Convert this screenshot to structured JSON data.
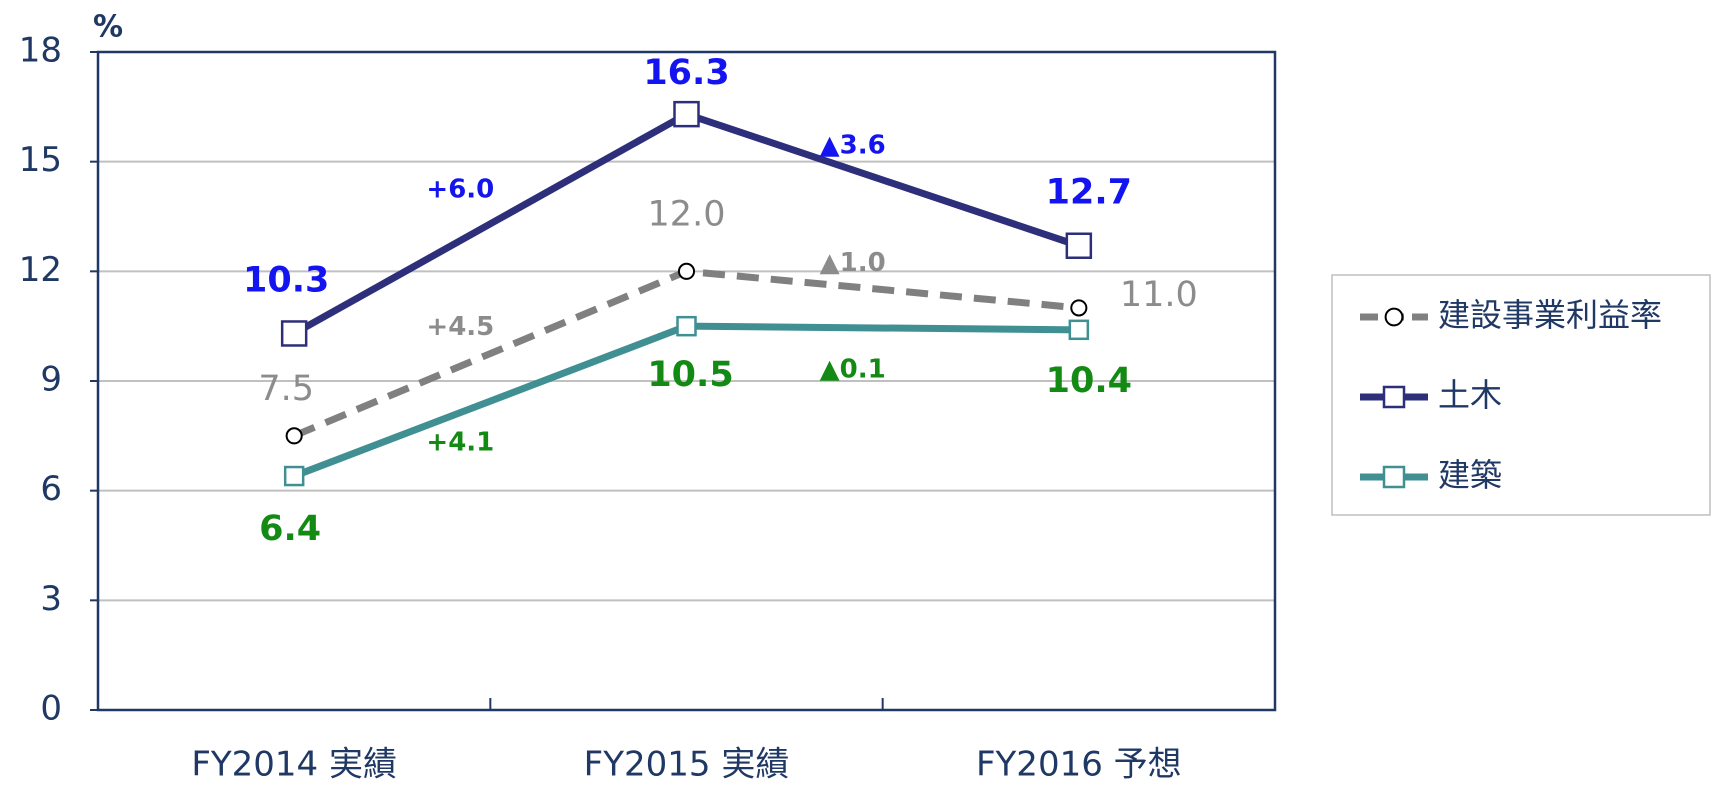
{
  "chart_data": {
    "type": "line",
    "y_unit_label": "%",
    "categories": [
      "FY2014 実績",
      "FY2015 実績",
      "FY2016 予想"
    ],
    "ylim": [
      0,
      18
    ],
    "yticks": [
      0,
      3,
      6,
      9,
      12,
      15,
      18
    ],
    "grid": true,
    "legend": "right",
    "series": [
      {
        "name": "建設事業利益率",
        "color": "#808080",
        "label_color": "#8c8c8c",
        "dash": true,
        "marker": "circle",
        "values": [
          7.5,
          12.0,
          11.0
        ],
        "value_labels": [
          "7.5",
          "12.0",
          "11.0"
        ],
        "changes": [
          "+4.5",
          "▲1.0"
        ]
      },
      {
        "name": "土木",
        "color": "#2e2f7a",
        "label_color": "#1414f0",
        "dash": false,
        "marker": "square",
        "values": [
          10.3,
          16.3,
          12.7
        ],
        "value_labels": [
          "10.3",
          "16.3",
          "12.7"
        ],
        "changes": [
          "+6.0",
          "▲3.6"
        ]
      },
      {
        "name": "建築",
        "color": "#3f8f93",
        "label_color": "#138a13",
        "dash": false,
        "marker": "square",
        "values": [
          6.4,
          10.5,
          10.4
        ],
        "value_labels": [
          "6.4",
          "10.5",
          "10.4"
        ],
        "changes": [
          "+4.1",
          "▲0.1"
        ]
      }
    ]
  }
}
